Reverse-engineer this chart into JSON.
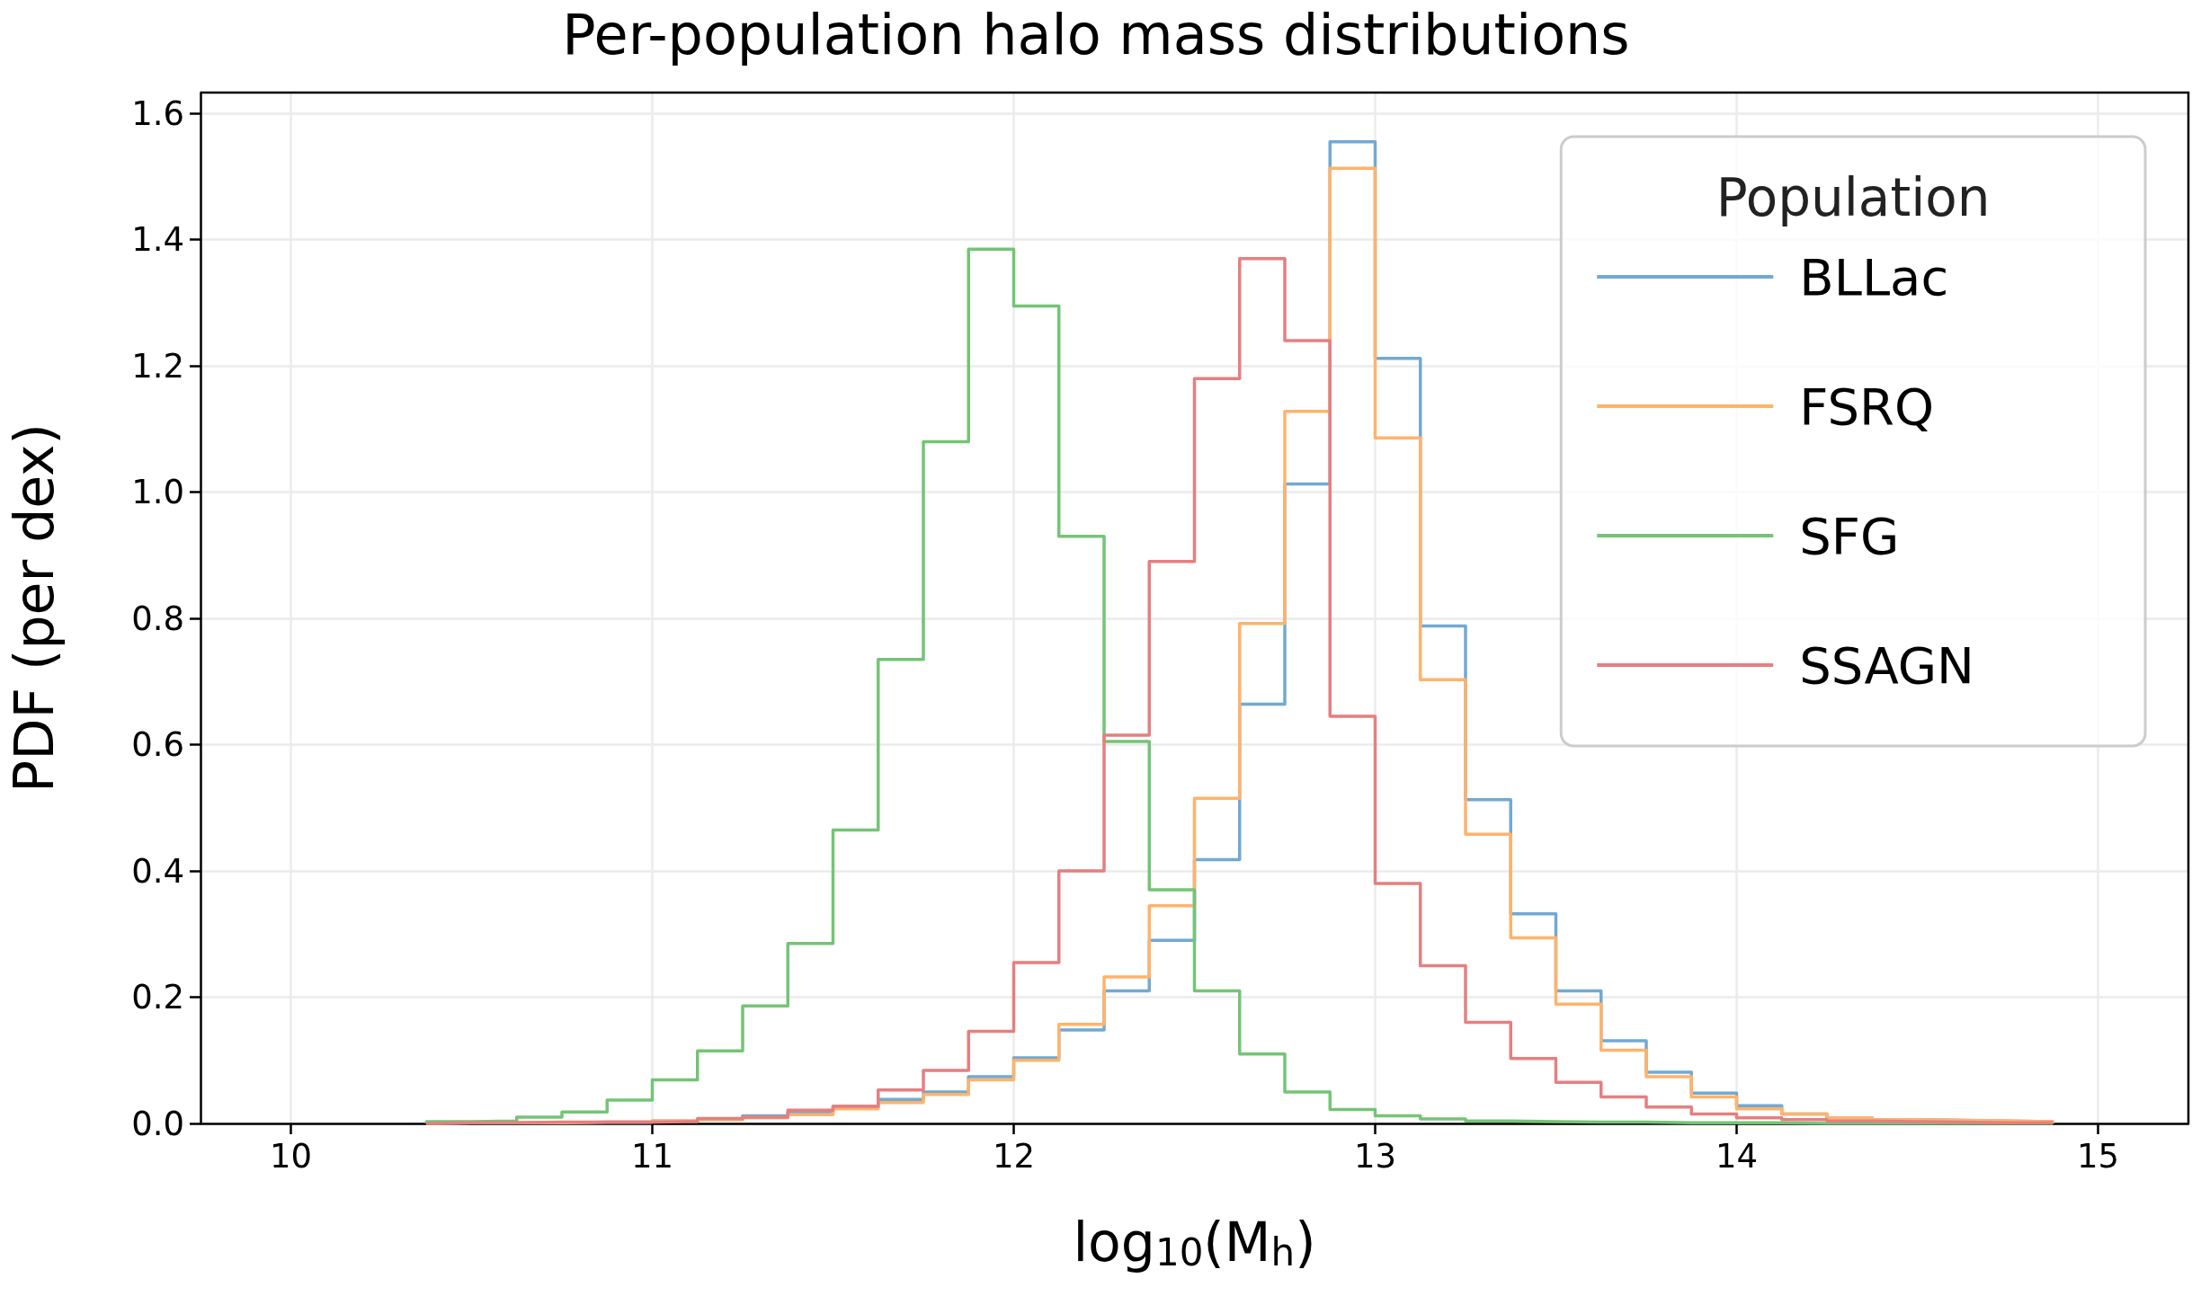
{
  "chart_data": {
    "type": "histogram",
    "title": "Per-population halo mass distributions",
    "xlabel": "log$_{10}$(M$_{h}$)",
    "ylabel": "PDF (per dex)",
    "legend_title": "Population",
    "bins": [
      10.375,
      10.5,
      10.625,
      10.75,
      10.875,
      11.0,
      11.125,
      11.25,
      11.375,
      11.5,
      11.625,
      11.75,
      11.875,
      12.0,
      12.125,
      12.25,
      12.375,
      12.5,
      12.625,
      12.75,
      12.875,
      13.0,
      13.125,
      13.25,
      13.375,
      13.5,
      13.625,
      13.75,
      13.875,
      14.0,
      14.125,
      14.25,
      14.375,
      14.5,
      14.625,
      14.75,
      14.875
    ],
    "series": [
      {
        "name": "BLLac",
        "color": "#72a9d2",
        "values": [
          0.001,
          0.001,
          0.001,
          0.002,
          0.002,
          0.004,
          0.006,
          0.012,
          0.017,
          0.027,
          0.038,
          0.05,
          0.074,
          0.104,
          0.148,
          0.21,
          0.29,
          0.418,
          0.664,
          1.013,
          1.555,
          1.212,
          0.788,
          0.513,
          0.332,
          0.21,
          0.131,
          0.081,
          0.048,
          0.028,
          0.015,
          0.009,
          0.006,
          0.005,
          0.004,
          0.003
        ]
      },
      {
        "name": "FSRQ",
        "color": "#ffb36b",
        "values": [
          0.001,
          0.001,
          0.001,
          0.002,
          0.002,
          0.004,
          0.006,
          0.009,
          0.014,
          0.023,
          0.033,
          0.046,
          0.069,
          0.1,
          0.157,
          0.232,
          0.345,
          0.515,
          0.792,
          1.128,
          1.513,
          1.086,
          0.703,
          0.458,
          0.294,
          0.189,
          0.116,
          0.074,
          0.042,
          0.023,
          0.015,
          0.009,
          0.006,
          0.005,
          0.004,
          0.003
        ]
      },
      {
        "name": "SFG",
        "color": "#74c476",
        "values": [
          0.003,
          0.004,
          0.01,
          0.018,
          0.037,
          0.069,
          0.115,
          0.186,
          0.285,
          0.465,
          0.735,
          1.08,
          1.385,
          1.295,
          0.93,
          0.605,
          0.37,
          0.21,
          0.11,
          0.05,
          0.022,
          0.012,
          0.007,
          0.004,
          0.003,
          0.002,
          0.002,
          0.001,
          0.001,
          0.001,
          0,
          0,
          0,
          0,
          0,
          0
        ]
      },
      {
        "name": "SSAGN",
        "color": "#e57f80",
        "values": [
          0.001,
          0.001,
          0.002,
          0.002,
          0.002,
          0.003,
          0.008,
          0.01,
          0.021,
          0.027,
          0.053,
          0.084,
          0.146,
          0.255,
          0.4,
          0.615,
          0.89,
          1.18,
          1.37,
          1.24,
          0.645,
          0.38,
          0.25,
          0.16,
          0.103,
          0.065,
          0.042,
          0.026,
          0.015,
          0.009,
          0.006,
          0.004,
          0.003,
          0.002,
          0.001,
          0.001
        ]
      }
    ],
    "xlim": [
      9.75,
      15.25
    ],
    "xticks": [
      10,
      11,
      12,
      13,
      14,
      15
    ],
    "ylim": [
      0,
      1.633
    ],
    "yticks": [
      {
        "value": 0,
        "label": "0.0"
      },
      0.2,
      0.4,
      0.6,
      0.8,
      {
        "value": 1,
        "label": "1.0"
      },
      1.2,
      1.4,
      1.6
    ],
    "grid": true,
    "legend": "top right"
  }
}
